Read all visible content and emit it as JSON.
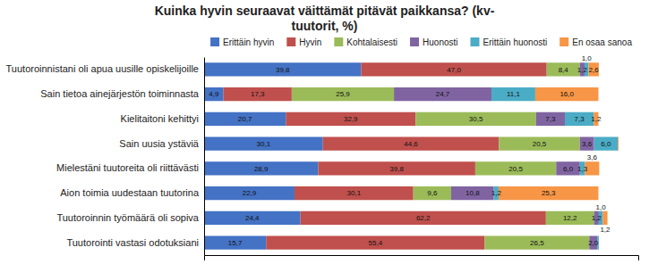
{
  "chart_data": {
    "type": "bar",
    "orientation": "horizontal",
    "stacked": true,
    "title": "Kuinka hyvin seuraavat väittämät pitävät paikkansa? (kv-\ntuutorit, %)",
    "categories": [
      "Tuutoroinnistani oli apua uusille opiskelijoille",
      "Sain tietoa ainejärjestön toiminnasta",
      "Kielitaitoni kehittyi",
      "Sain uusia ystäviä",
      "Mielestäni tuutoreita oli riittävästi",
      "Aion toimia uudestaan tuutorina",
      "Tuutoroinnin työmäärä oli sopiva",
      "Tuutorointi vastasi odotuksiani"
    ],
    "series": [
      {
        "name": "Erittäin hyvin",
        "color": "#4472C4",
        "values": [
          39.8,
          4.9,
          20.7,
          30.1,
          28.9,
          22.9,
          24.4,
          15.7
        ],
        "value_labels": [
          "39,8",
          "4,9",
          "20,7",
          "30,1",
          "28,9",
          "22,9",
          "24,4",
          "15,7"
        ]
      },
      {
        "name": "Hyvin",
        "color": "#C0504D",
        "values": [
          47.0,
          17.3,
          32.9,
          44.6,
          39.8,
          30.1,
          62.2,
          55.4
        ],
        "value_labels": [
          "47,0",
          "17,3",
          "32,9",
          "44,6",
          "39,8",
          "30,1",
          "62,2",
          "55,4"
        ]
      },
      {
        "name": "Kohtalaisesti",
        "color": "#9BBB59",
        "values": [
          8.4,
          25.9,
          30.5,
          20.5,
          20.5,
          9.6,
          12.2,
          26.5
        ],
        "value_labels": [
          "8,4",
          "25,9",
          "30,5",
          "20,5",
          "20,5",
          "9,6",
          "12,2",
          "26,5"
        ]
      },
      {
        "name": "Huonosti",
        "color": "#8064A2",
        "values": [
          1.2,
          24.7,
          7.3,
          3.6,
          6.0,
          10.8,
          1.2,
          2.0
        ],
        "value_labels": [
          "1,2",
          "24,7",
          "7,3",
          "3,6",
          "6,0",
          "10,8",
          "1,2",
          "2,0"
        ]
      },
      {
        "name": "Erittäin huonosti",
        "color": "#4BACC6",
        "values": [
          1.0,
          11.1,
          7.3,
          6.0,
          1.3,
          1.2,
          1.0,
          0.4
        ],
        "value_labels": [
          "1,0",
          "11,1",
          "7,3",
          "6,0",
          "1,3",
          "1,2",
          "1,0",
          null
        ]
      },
      {
        "name": "En osaa sanoa",
        "color": "#F79646",
        "values": [
          2.6,
          16.0,
          1.2,
          0.2,
          3.6,
          25.3,
          1.2,
          0.0
        ],
        "value_labels": [
          "2,6",
          "16,0",
          "1,2",
          null,
          "3,6",
          "25,3",
          "1,2",
          null
        ]
      }
    ],
    "xlim": [
      0,
      110
    ],
    "xticks": [],
    "tick_labels": "y",
    "data_labels": true,
    "legend": "top"
  }
}
